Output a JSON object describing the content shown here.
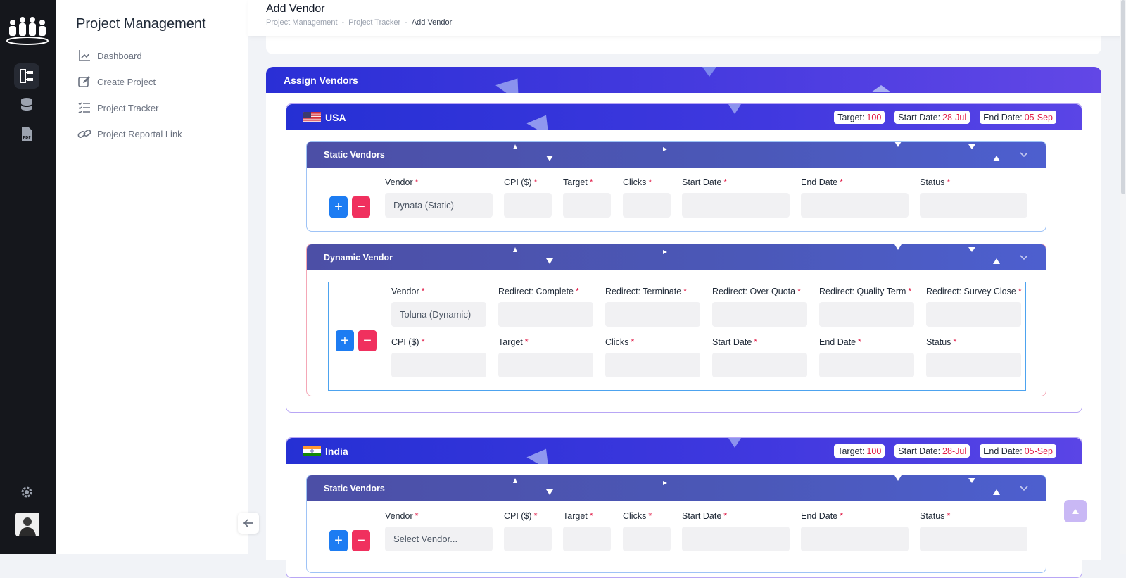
{
  "topbar": {
    "title": "Add Vendor",
    "breadcrumb": [
      "Project Management",
      "Project Tracker",
      "Add Vendor"
    ],
    "separator": "-"
  },
  "rail": {
    "icons": [
      "team-logo-icon",
      "project-tree-icon",
      "database-icon",
      "pdf-file-icon",
      "settings-gear-icon",
      "user-avatar"
    ]
  },
  "sidebar": {
    "title": "Project Management",
    "items": [
      {
        "label": "Dashboard",
        "icon": "chart-icon"
      },
      {
        "label": "Create Project",
        "icon": "edit-icon"
      },
      {
        "label": "Project Tracker",
        "icon": "checklist-icon"
      },
      {
        "label": "Project Reportal Link",
        "icon": "link-icon"
      }
    ]
  },
  "assign": {
    "title": "Assign Vendors",
    "pill_labels": {
      "target": "Target:",
      "start": "Start Date:",
      "end": "End Date:"
    },
    "countries": [
      {
        "name": "USA",
        "target": "100",
        "start_date": "28-Jul",
        "end_date": "05-Sep",
        "static": {
          "title": "Static Vendors",
          "fields": [
            "Vendor",
            "CPI ($)",
            "Target",
            "Clicks",
            "Start Date",
            "End Date",
            "Status"
          ],
          "vendor_value": "Dynata (Static)"
        },
        "dynamic": {
          "title": "Dynamic Vendor",
          "row1": [
            "Vendor",
            "Redirect: Complete",
            "Redirect: Terminate",
            "Redirect: Over Quota",
            "Redirect: Quality Term",
            "Redirect: Survey Close"
          ],
          "row2": [
            "CPI ($)",
            "Target",
            "Clicks",
            "Start Date",
            "End Date",
            "Status"
          ],
          "vendor_value": "Toluna (Dynamic)"
        }
      },
      {
        "name": "India",
        "target": "100",
        "start_date": "28-Jul",
        "end_date": "05-Sep",
        "static": {
          "title": "Static Vendors",
          "fields": [
            "Vendor",
            "CPI ($)",
            "Target",
            "Clicks",
            "Start Date",
            "End Date",
            "Status"
          ],
          "vendor_placeholder": "Select Vendor..."
        }
      }
    ]
  },
  "buttons": {
    "plus": "+",
    "minus": "−"
  },
  "required_mark": "*",
  "colors": {
    "header_gradient_start": "#2a2fd6",
    "header_gradient_end": "#6247e6",
    "plus": "#1d7cf2",
    "minus": "#f0305e",
    "required": "#e11d48"
  }
}
